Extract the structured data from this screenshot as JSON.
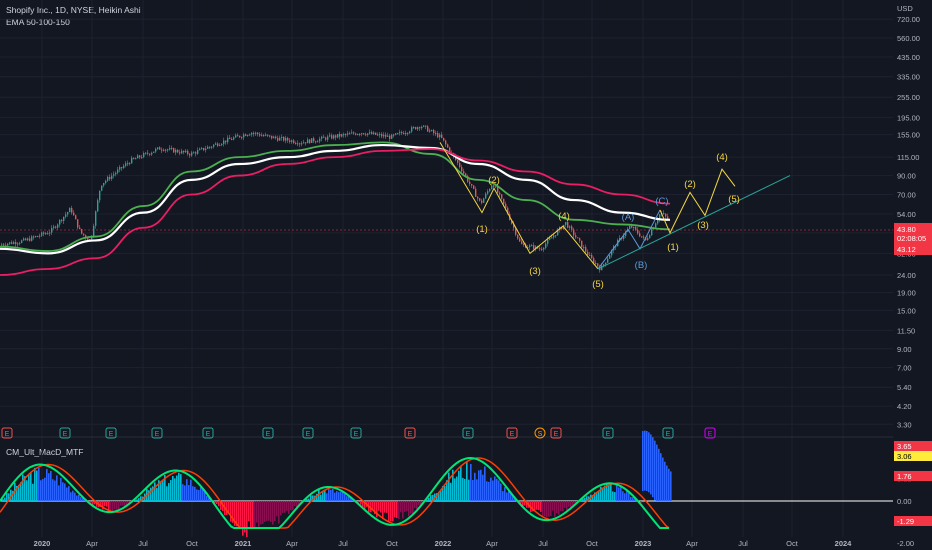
{
  "header": {
    "title": "Shopify Inc., 1D, NYSE, Heikin Ashi",
    "ema_label": "EMA 50-100-150",
    "macd_label": "CM_Ult_MacD_MTF",
    "currency": "USD"
  },
  "colors": {
    "background": "#131722",
    "grid": "#1e2230",
    "axis_text": "#b2b5be",
    "ema50": "#4caf50",
    "ema100": "#ffffff",
    "ema150": "#e91e63",
    "candle_up": "#26a69a",
    "candle_down": "#ef5350",
    "wave_yellow": "#f5d742",
    "wave_blue": "#5d9bd9",
    "trendline": "#26a69a"
  },
  "price_axis": {
    "scale": "log",
    "ticks": [
      "720.00",
      "560.00",
      "435.00",
      "335.00",
      "255.00",
      "195.00",
      "155.00",
      "115.00",
      "90.00",
      "70.00",
      "54.00",
      "42.00",
      "32.00",
      "24.00",
      "19.00",
      "15.00",
      "11.50",
      "9.00",
      "7.00",
      "5.40",
      "4.20",
      "3.30"
    ],
    "badges": {
      "price": "43.80",
      "countdown": "02:08:05",
      "prev": "43.12"
    }
  },
  "macd_axis": {
    "badges": [
      "3.65",
      "3.06",
      "1.76",
      "-1.29"
    ],
    "ticks": [
      "0.00",
      "-2.00"
    ],
    "faded_tick": "3.00"
  },
  "time_axis": {
    "labels": [
      "2020",
      "Apr",
      "Jul",
      "Oct",
      "2021",
      "Apr",
      "Jul",
      "Oct",
      "2022",
      "Apr",
      "Jul",
      "Oct",
      "2023",
      "Apr",
      "Jul",
      "Oct",
      "2024"
    ]
  },
  "events": [
    {
      "label": "E",
      "kind": "earnings-miss"
    },
    {
      "label": "E",
      "kind": "earnings"
    },
    {
      "label": "E",
      "kind": "earnings"
    },
    {
      "label": "E",
      "kind": "earnings"
    },
    {
      "label": "E",
      "kind": "earnings"
    },
    {
      "label": "E",
      "kind": "earnings"
    },
    {
      "label": "E",
      "kind": "earnings"
    },
    {
      "label": "E",
      "kind": "earnings"
    },
    {
      "label": "E",
      "kind": "earnings-miss"
    },
    {
      "label": "E",
      "kind": "earnings"
    },
    {
      "label": "E",
      "kind": "earnings-miss"
    },
    {
      "label": "S",
      "kind": "split"
    },
    {
      "label": "E",
      "kind": "earnings-miss"
    },
    {
      "label": "E",
      "kind": "earnings"
    },
    {
      "label": "E",
      "kind": "earnings"
    },
    {
      "label": "E",
      "kind": "upcoming"
    }
  ],
  "wave_labels": {
    "yellow": [
      "(1)",
      "(2)",
      "(3)",
      "(4)",
      "(5)",
      "(1)",
      "(2)",
      "(3)",
      "(4)",
      "(5)"
    ],
    "blue": [
      "(A)",
      "(B)",
      "(C)"
    ]
  },
  "chart_data": {
    "type": "line",
    "scale": "log",
    "x_labels": [
      "2020",
      "Apr",
      "Jul",
      "Oct",
      "2021",
      "Apr",
      "Jul",
      "Oct",
      "2022",
      "Apr",
      "Jul",
      "Oct",
      "2023",
      "Apr",
      "Jul",
      "Oct",
      "2024"
    ],
    "series": [
      {
        "name": "EMA 50-100-150",
        "values": [
          35,
          33,
          40,
          60,
          95,
          115,
          125,
          135,
          140,
          120,
          85,
          65,
          50,
          47,
          44
        ]
      },
      {
        "name": "EMA 50-100-150",
        "values": [
          34,
          32,
          38,
          55,
          85,
          105,
          115,
          125,
          135,
          130,
          105,
          85,
          65,
          55,
          50
        ]
      },
      {
        "name": "EMA 50-100-150",
        "values": [
          24,
          26,
          30,
          45,
          70,
          90,
          105,
          115,
          125,
          128,
          110,
          95,
          80,
          70,
          62
        ]
      }
    ]
  }
}
